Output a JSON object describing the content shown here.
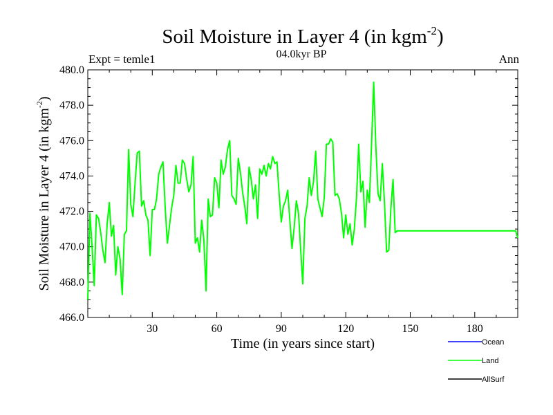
{
  "chart_data": {
    "type": "line",
    "title_main": "Soil Moisture in Layer 4 (in kgm",
    "title_sup": "-2",
    "title_close": ")",
    "subtitle": "04.0kyr BP",
    "left_label": "Expt = temle1",
    "right_label": "Ann",
    "xlabel": "Time (in years since start)",
    "ylabel_main": "Soil Moisture in Layer 4 (in kgm",
    "ylabel_sup": "-2",
    "ylabel_close": ")",
    "xlim": [
      0,
      200
    ],
    "ylim": [
      466,
      480
    ],
    "x_ticks": [
      30,
      60,
      90,
      120,
      150,
      180
    ],
    "x_tick_labels": [
      "30",
      "60",
      "90",
      "120",
      "150",
      "180"
    ],
    "y_ticks": [
      466,
      468,
      470,
      472,
      474,
      476,
      478,
      480
    ],
    "y_tick_labels": [
      "466.0",
      "468.0",
      "470.0",
      "472.0",
      "474.0",
      "476.0",
      "478.0",
      "480.0"
    ],
    "legend": [
      {
        "name": "Ocean",
        "color": "#0000ff"
      },
      {
        "name": "Land",
        "color": "#00ff00"
      },
      {
        "name": "AllSurf",
        "color": "#000000"
      }
    ],
    "series": [
      {
        "name": "Land",
        "color": "#00ff00",
        "x": [
          0,
          1,
          2,
          3,
          4,
          5,
          6,
          7,
          8,
          9,
          10,
          11,
          12,
          13,
          14,
          15,
          16,
          17,
          18,
          19,
          20,
          21,
          22,
          23,
          24,
          25,
          26,
          27,
          28,
          29,
          30,
          31,
          32,
          33,
          34,
          35,
          36,
          37,
          38,
          39,
          40,
          41,
          42,
          43,
          44,
          45,
          46,
          47,
          48,
          49,
          50,
          51,
          52,
          53,
          54,
          55,
          56,
          57,
          58,
          59,
          60,
          61,
          62,
          63,
          64,
          65,
          66,
          67,
          68,
          69,
          70,
          71,
          72,
          73,
          74,
          75,
          76,
          77,
          78,
          79,
          80,
          81,
          82,
          83,
          84,
          85,
          86,
          87,
          88,
          89,
          90,
          91,
          92,
          93,
          94,
          95,
          96,
          97,
          98,
          99,
          100,
          101,
          102,
          103,
          104,
          105,
          106,
          107,
          108,
          109,
          110,
          111,
          112,
          113,
          114,
          115,
          116,
          117,
          118,
          119,
          120,
          121,
          122,
          123,
          124,
          125,
          126,
          127,
          128,
          129,
          130,
          131,
          132,
          133,
          134,
          135,
          136,
          137,
          138,
          139,
          140,
          141,
          142,
          143,
          144,
          145,
          150,
          160,
          170,
          180,
          190,
          199,
          200
        ],
        "values": [
          467.0,
          471.9,
          470.0,
          467.8,
          471.8,
          471.6,
          470.8,
          469.8,
          469.1,
          471.3,
          472.5,
          470.6,
          471.2,
          468.4,
          470.0,
          469.3,
          467.3,
          470.7,
          470.9,
          475.5,
          472.4,
          471.7,
          473.6,
          475.3,
          475.4,
          472.3,
          472.6,
          471.8,
          471.5,
          469.5,
          472.1,
          472.1,
          472.7,
          474.1,
          474.5,
          474.8,
          472.2,
          470.2,
          471.2,
          472.2,
          472.9,
          474.6,
          473.6,
          473.6,
          474.9,
          474.7,
          473.8,
          473.1,
          473.5,
          475.1,
          470.2,
          470.5,
          469.7,
          471.5,
          470.4,
          467.5,
          472.7,
          471.7,
          471.8,
          473.9,
          473.6,
          472.2,
          474.9,
          474.1,
          474.5,
          475.5,
          476.0,
          472.9,
          472.7,
          472.4,
          475.0,
          474.2,
          473.1,
          472.3,
          471.3,
          474.5,
          473.8,
          472.7,
          473.5,
          471.6,
          474.4,
          474.1,
          474.6,
          474.0,
          474.7,
          474.4,
          475.1,
          474.7,
          474.8,
          473.0,
          471.4,
          472.3,
          472.6,
          473.2,
          471.5,
          469.9,
          471.1,
          472.6,
          471.9,
          469.9,
          467.9,
          471.6,
          472.3,
          473.9,
          472.9,
          473.7,
          475.4,
          472.7,
          472.2,
          471.7,
          472.8,
          475.8,
          475.8,
          476.1,
          475.9,
          472.9,
          473.0,
          472.7,
          471.9,
          470.5,
          471.8,
          470.7,
          471.3,
          470.1,
          471.0,
          472.8,
          475.8,
          473.1,
          473.7,
          471.1,
          473.2,
          472.5,
          475.8,
          479.3,
          475.7,
          473.0,
          472.6,
          474.7,
          472.5,
          469.7,
          469.8,
          472.2,
          473.8,
          470.8,
          470.9,
          470.9,
          470.9,
          470.9,
          470.9,
          470.9,
          470.9,
          470.9,
          470.5
        ]
      }
    ]
  }
}
